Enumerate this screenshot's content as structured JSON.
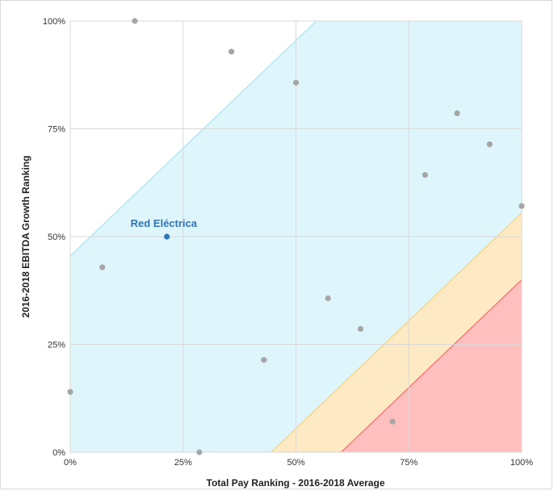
{
  "chart_data": {
    "type": "scatter",
    "title": "",
    "xlabel": "Total Pay Ranking - 2016-2018  Average",
    "ylabel": "2016-2018  EBITDA  Growth Ranking",
    "xlim": [
      0,
      100
    ],
    "ylim": [
      0,
      100
    ],
    "x_ticks": [
      "0%",
      "25%",
      "50%",
      "75%",
      "100%"
    ],
    "y_ticks": [
      "0%",
      "25%",
      "50%",
      "75%",
      "100%"
    ],
    "grid": true,
    "points": [
      {
        "x": 0,
        "y": 14
      },
      {
        "x": 7.1,
        "y": 42.9
      },
      {
        "x": 14.3,
        "y": 100
      },
      {
        "x": 28.6,
        "y": 0
      },
      {
        "x": 35.7,
        "y": 92.9
      },
      {
        "x": 42.9,
        "y": 21.4
      },
      {
        "x": 50,
        "y": 85.7
      },
      {
        "x": 57.1,
        "y": 35.7
      },
      {
        "x": 64.3,
        "y": 28.6
      },
      {
        "x": 71.4,
        "y": 7.1
      },
      {
        "x": 78.6,
        "y": 64.3
      },
      {
        "x": 85.7,
        "y": 78.6
      },
      {
        "x": 92.9,
        "y": 71.4
      },
      {
        "x": 100,
        "y": 57.1
      }
    ],
    "highlight": {
      "label": "Red Eléctrica",
      "x": 21.4,
      "y": 50,
      "color": "#2e75b6"
    },
    "point_color": "#a6a6a6",
    "bands": [
      {
        "name": "blue-band",
        "color": "#dff5fc",
        "edge": "#a6e3f2",
        "polygon": [
          [
            0,
            45.5
          ],
          [
            54.5,
            100
          ],
          [
            100,
            100
          ],
          [
            100,
            55.5
          ],
          [
            44.5,
            0
          ],
          [
            0,
            0
          ]
        ]
      },
      {
        "name": "yellow-band",
        "color": "#fde9c4",
        "edge": "#f7d27a",
        "polygon": [
          [
            44.5,
            0
          ],
          [
            100,
            55.5
          ],
          [
            100,
            40
          ],
          [
            60,
            0
          ]
        ]
      },
      {
        "name": "red-band",
        "color": "#ffbfbf",
        "edge": "#ff6666",
        "polygon": [
          [
            60,
            0
          ],
          [
            100,
            40
          ],
          [
            100,
            0
          ]
        ]
      }
    ]
  }
}
